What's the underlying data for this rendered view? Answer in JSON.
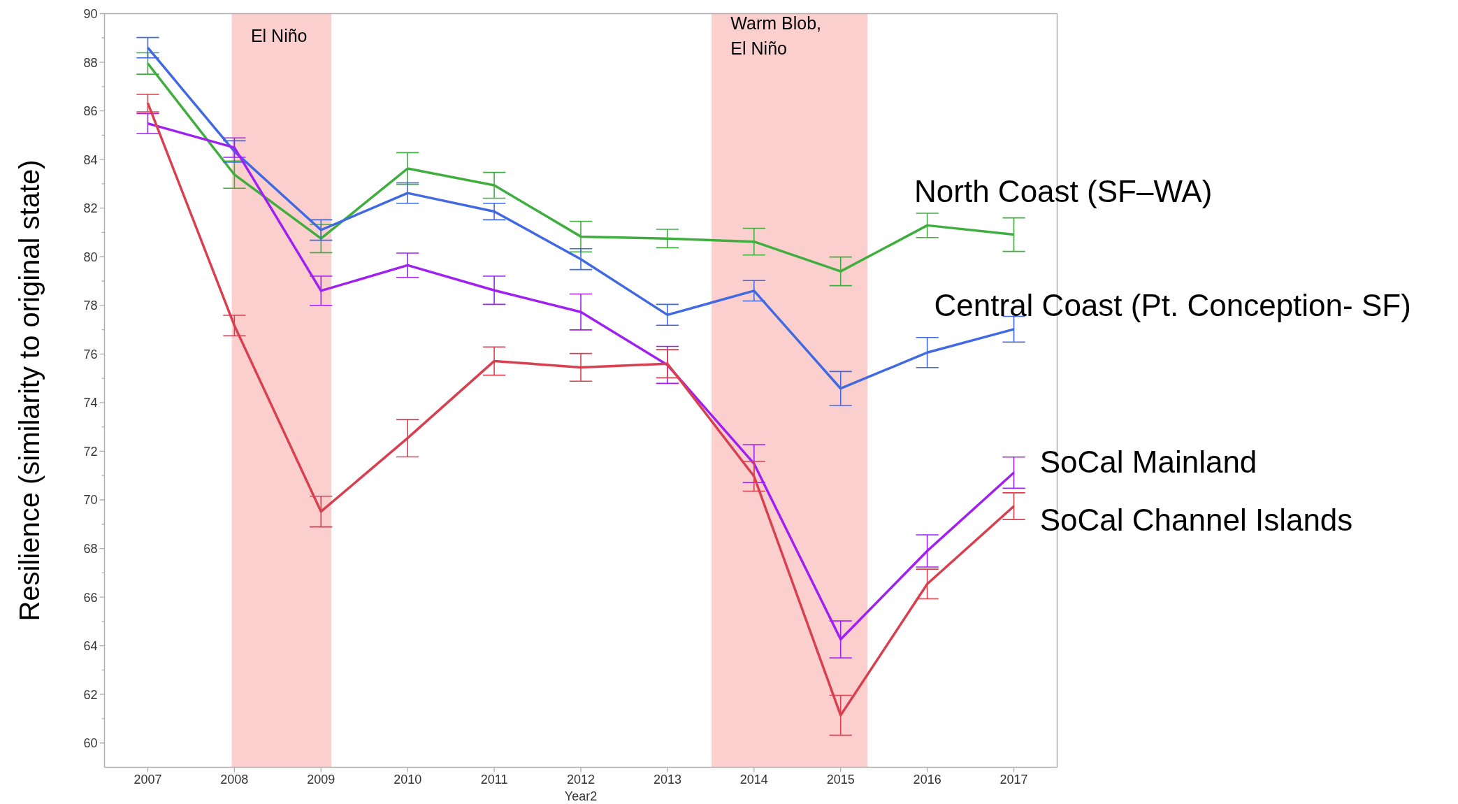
{
  "chart_data": {
    "type": "line",
    "xlabel": "Year2",
    "ylabel": "Resilience (similarity to original state)",
    "x": [
      2007,
      2008,
      2009,
      2010,
      2011,
      2012,
      2013,
      2014,
      2015,
      2016,
      2017
    ],
    "xlim": [
      2006.5,
      2017.5
    ],
    "xticks": [
      2007,
      2008,
      2009,
      2010,
      2011,
      2012,
      2013,
      2014,
      2015,
      2016,
      2017
    ],
    "ylim": [
      59,
      90
    ],
    "yticks": [
      60,
      62,
      64,
      66,
      68,
      70,
      72,
      74,
      76,
      78,
      80,
      82,
      84,
      86,
      88,
      90
    ],
    "grid": false,
    "marker": "none",
    "line_style": "solid",
    "series": [
      {
        "name": "North Coast (SF–WA)",
        "color": "#3fae3f",
        "values": [
          87.95,
          83.38,
          80.75,
          83.63,
          82.94,
          80.83,
          80.75,
          80.62,
          79.4,
          81.29,
          80.91
        ],
        "errors": [
          0.44,
          0.56,
          0.58,
          0.65,
          0.53,
          0.63,
          0.38,
          0.55,
          0.59,
          0.5,
          0.69
        ]
      },
      {
        "name": "Central Coast (Pt. Conception- SF)",
        "color": "#4169e1",
        "values": [
          88.6,
          84.33,
          81.1,
          82.62,
          81.86,
          79.9,
          77.61,
          78.6,
          74.58,
          76.06,
          77.02
        ],
        "errors": [
          0.42,
          0.44,
          0.42,
          0.42,
          0.34,
          0.43,
          0.43,
          0.42,
          0.7,
          0.62,
          0.53
        ]
      },
      {
        "name": "SoCal Mainland",
        "color": "#a020f0",
        "values": [
          85.48,
          84.49,
          78.6,
          79.65,
          78.62,
          77.73,
          75.55,
          71.49,
          64.26,
          67.9,
          71.12
        ],
        "errors": [
          0.41,
          0.4,
          0.6,
          0.5,
          0.58,
          0.74,
          0.76,
          0.78,
          0.76,
          0.66,
          0.64
        ]
      },
      {
        "name": "SoCal Channel Islands",
        "color": "#d8404f",
        "values": [
          86.32,
          77.17,
          69.52,
          72.54,
          75.71,
          75.45,
          75.6,
          70.97,
          61.14,
          66.54,
          69.74
        ],
        "errors": [
          0.36,
          0.42,
          0.63,
          0.77,
          0.58,
          0.57,
          0.58,
          0.61,
          0.82,
          0.61,
          0.55
        ]
      }
    ],
    "bands": [
      {
        "axis": "x",
        "from": 2007.97,
        "to": 2009.12,
        "label": "El Niño",
        "color": "#fccfcf"
      },
      {
        "axis": "x",
        "from": 2013.51,
        "to": 2015.31,
        "label": "Warm Blob,\nEl Niño",
        "color": "#fccfcf"
      }
    ]
  }
}
